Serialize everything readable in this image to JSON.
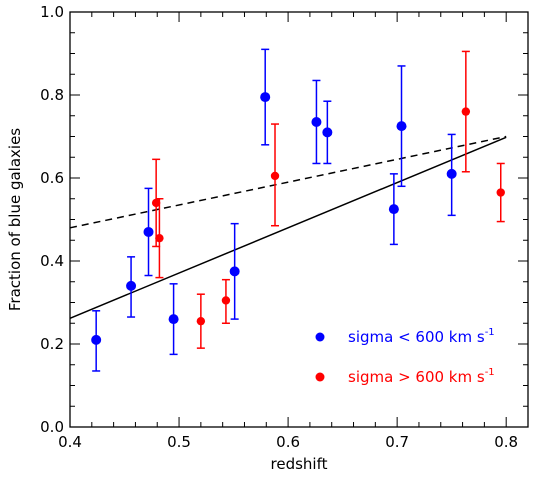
{
  "chart_data": {
    "type": "scatter",
    "title": "",
    "xlabel": "redshift",
    "ylabel": "Fraction of blue galaxies",
    "xlim": [
      0.4,
      0.82
    ],
    "ylim": [
      0.0,
      1.0
    ],
    "grid": false,
    "x_ticks": [
      "0.4",
      "0.5",
      "0.6",
      "0.7",
      "0.8"
    ],
    "y_ticks": [
      "0.0",
      "0.2",
      "0.4",
      "0.6",
      "0.8",
      "1.0"
    ],
    "legend_position": "bottom-right",
    "series": [
      {
        "name": "sigma < 600 km s",
        "name_superscript": "-1",
        "color": "#0000ff",
        "points": [
          {
            "x": 0.424,
            "y": 0.21,
            "lo": 0.135,
            "hi": 0.28
          },
          {
            "x": 0.456,
            "y": 0.34,
            "lo": 0.265,
            "hi": 0.41
          },
          {
            "x": 0.472,
            "y": 0.47,
            "lo": 0.365,
            "hi": 0.575
          },
          {
            "x": 0.495,
            "y": 0.26,
            "lo": 0.175,
            "hi": 0.345
          },
          {
            "x": 0.551,
            "y": 0.375,
            "lo": 0.26,
            "hi": 0.49
          },
          {
            "x": 0.579,
            "y": 0.795,
            "lo": 0.68,
            "hi": 0.91
          },
          {
            "x": 0.626,
            "y": 0.735,
            "lo": 0.635,
            "hi": 0.835
          },
          {
            "x": 0.636,
            "y": 0.71,
            "lo": 0.635,
            "hi": 0.785
          },
          {
            "x": 0.697,
            "y": 0.525,
            "lo": 0.44,
            "hi": 0.61
          },
          {
            "x": 0.704,
            "y": 0.725,
            "lo": 0.58,
            "hi": 0.87
          },
          {
            "x": 0.75,
            "y": 0.61,
            "lo": 0.51,
            "hi": 0.705
          }
        ]
      },
      {
        "name": "sigma > 600 km s",
        "name_superscript": "-1",
        "color": "#ff0000",
        "points": [
          {
            "x": 0.479,
            "y": 0.54,
            "lo": 0.435,
            "hi": 0.645
          },
          {
            "x": 0.482,
            "y": 0.455,
            "lo": 0.36,
            "hi": 0.55
          },
          {
            "x": 0.52,
            "y": 0.255,
            "lo": 0.19,
            "hi": 0.32
          },
          {
            "x": 0.543,
            "y": 0.305,
            "lo": 0.25,
            "hi": 0.355
          },
          {
            "x": 0.588,
            "y": 0.605,
            "lo": 0.485,
            "hi": 0.73
          },
          {
            "x": 0.763,
            "y": 0.76,
            "lo": 0.615,
            "hi": 0.905
          },
          {
            "x": 0.795,
            "y": 0.565,
            "lo": 0.495,
            "hi": 0.635
          }
        ]
      }
    ],
    "lines": [
      {
        "style": "solid",
        "color": "#000000",
        "x": [
          0.4,
          0.8
        ],
        "y": [
          0.262,
          0.698
        ]
      },
      {
        "style": "dashed",
        "color": "#000000",
        "x": [
          0.4,
          0.8
        ],
        "y": [
          0.48,
          0.7
        ]
      }
    ]
  }
}
